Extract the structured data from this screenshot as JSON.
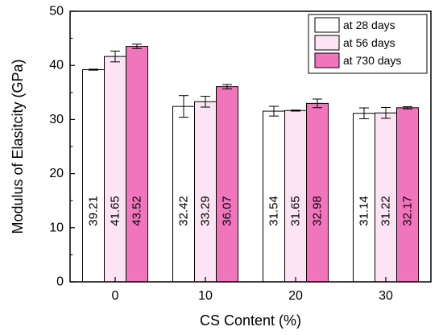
{
  "chart_data": {
    "type": "bar",
    "xlabel": "CS Content (%)",
    "ylabel": "Modulus of Elasitcity (GPa)",
    "categories": [
      "0",
      "10",
      "20",
      "30"
    ],
    "ylim": [
      0,
      50
    ],
    "yticks": [
      0,
      10,
      20,
      30,
      40,
      50
    ],
    "legend_position": "top-right",
    "grid": false,
    "series": [
      {
        "name": "at 28 days",
        "color": "#ffffff",
        "values": [
          39.21,
          32.42,
          31.54,
          31.14
        ],
        "errors": [
          0.1,
          2.0,
          0.9,
          1.0
        ],
        "labels": [
          "39.21",
          "32.42",
          "31.54",
          "31.14"
        ]
      },
      {
        "name": "at 56 days",
        "color": "#fce4f4",
        "values": [
          41.65,
          33.29,
          31.65,
          31.22
        ],
        "errors": [
          1.0,
          1.0,
          0.1,
          1.0
        ],
        "labels": [
          "41.65",
          "33.29",
          "31.65",
          "31.22"
        ]
      },
      {
        "name": "at 730 days",
        "color": "#f075bc",
        "values": [
          43.52,
          36.07,
          32.98,
          32.17
        ],
        "errors": [
          0.4,
          0.4,
          0.8,
          0.2
        ],
        "labels": [
          "43.52",
          "36.07",
          "32.98",
          "32.17"
        ]
      }
    ]
  }
}
